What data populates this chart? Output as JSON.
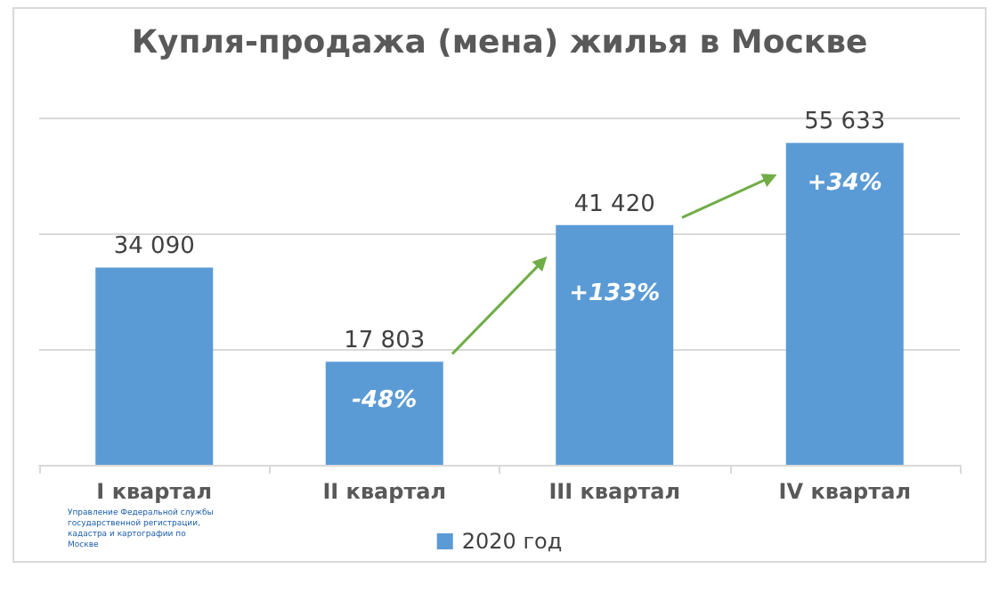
{
  "chart_data": {
    "type": "bar",
    "title": "Купля-продажа (мена) жилья в Москве",
    "categories": [
      "I квартал",
      "II квартал",
      "III квартал",
      "IV квартал"
    ],
    "series": [
      {
        "name": "2020 год",
        "color": "#5b9bd5",
        "values": [
          34090,
          17803,
          41420,
          55633
        ],
        "value_labels": [
          "34 090",
          "17 803",
          "41 420",
          "55 633"
        ]
      }
    ],
    "ylim": [
      0,
      60000
    ],
    "yticks": [
      {
        "value": 0,
        "label": null
      },
      {
        "value": 20000,
        "label": null
      },
      {
        "value": 40000,
        "label": null
      },
      {
        "value": 60000,
        "label": null
      }
    ],
    "tick_labels": "x",
    "grid": "y",
    "legend": "bottom",
    "annotations": [
      "-48%",
      "+133%",
      "+34%",
      "Управление Федеральной службы государственной регистрации, кадастра и картографии по Москве"
    ]
  }
}
